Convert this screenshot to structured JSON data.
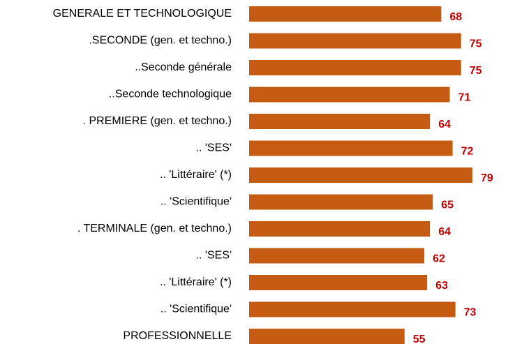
{
  "chart_data": {
    "type": "barh",
    "categories": [
      "GENERALE ET TECHNOLOGIQUE",
      ".SECONDE (gen. et techno.)",
      "..Seconde générale",
      "..Seconde technologique",
      ". PREMIERE (gen. et techno.)",
      ".. 'SES'",
      ".. 'Littéraire' (*)",
      ".. 'Scientifique'",
      ". TERMINALE (gen. et techno.)",
      ".. 'SES'",
      ".. 'Littéraire' (*)",
      ".. 'Scientifique'",
      "PROFESSIONNELLE"
    ],
    "values": [
      68,
      75,
      75,
      71,
      64,
      72,
      79,
      65,
      64,
      62,
      63,
      73,
      55
    ],
    "color": "#c55a11",
    "label_color": "#c00000"
  }
}
